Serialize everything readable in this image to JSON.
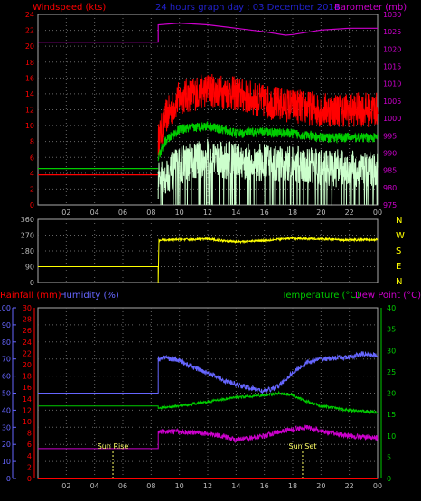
{
  "chart_data": [
    {
      "type": "line",
      "title": "24 hours graph day : 03 December 2014",
      "ylabel_left": "Windspeed (kts)",
      "ylabel_right": "Barometer (mb)",
      "ylim_left": [
        0,
        24
      ],
      "ylim_right": [
        975,
        1030
      ],
      "yticks_left": [
        "0",
        "2",
        "4",
        "6",
        "8",
        "10",
        "12",
        "14",
        "16",
        "18",
        "20",
        "22",
        "24"
      ],
      "yticks_right": [
        "975",
        "980",
        "985",
        "990",
        "995",
        "1000",
        "1005",
        "1010",
        "1015",
        "1020",
        "1025",
        "1030"
      ],
      "xticks": [
        "02",
        "04",
        "06",
        "08",
        "10",
        "12",
        "14",
        "16",
        "18",
        "20",
        "22",
        "00"
      ],
      "xlim_hours": [
        0,
        24
      ],
      "data_start_hour": 8.5,
      "colors": {
        "gust": "#ff0000",
        "wind": "#ccffcc",
        "avg": "#00cc00",
        "baro": "#cc00cc",
        "pre_wind": "#ff0000",
        "pre_avg": "#00cc00"
      },
      "series": [
        {
          "key": "baro",
          "points": [
            [
              0,
              1022
            ],
            [
              8.5,
              1022
            ],
            [
              8.5,
              1027
            ],
            [
              10,
              1027.5
            ],
            [
              12,
              1027
            ],
            [
              14,
              1026
            ],
            [
              16,
              1025
            ],
            [
              17.5,
              1024
            ],
            [
              18,
              1024.2
            ],
            [
              20,
              1025.5
            ],
            [
              22,
              1026
            ],
            [
              24,
              1026
            ]
          ]
        },
        {
          "key": "pre_wind",
          "points": [
            [
              0,
              3.8
            ],
            [
              8.5,
              3.8
            ]
          ]
        },
        {
          "key": "pre_avg",
          "points": [
            [
              0,
              4.6
            ],
            [
              8.5,
              4.6
            ]
          ]
        }
      ],
      "noise_series": [
        {
          "key": "gust",
          "base": [
            [
              8.5,
              8
            ],
            [
              9,
              11
            ],
            [
              10,
              13.5
            ],
            [
              12,
              14.5
            ],
            [
              14,
              14
            ],
            [
              16,
              13
            ],
            [
              18,
              12.5
            ],
            [
              20,
              12
            ],
            [
              22,
              12
            ],
            [
              24,
              12
            ]
          ],
          "amp": 2.2
        },
        {
          "key": "wind",
          "base": [
            [
              8.5,
              3
            ],
            [
              10,
              5
            ],
            [
              12,
              6
            ],
            [
              14,
              5.5
            ],
            [
              16,
              5.2
            ],
            [
              18,
              5
            ],
            [
              20,
              4.8
            ],
            [
              22,
              4.5
            ],
            [
              24,
              4.5
            ]
          ],
          "amp": 2.4
        },
        {
          "key": "avg",
          "base": [
            [
              8.5,
              6
            ],
            [
              9,
              8
            ],
            [
              10,
              9.5
            ],
            [
              12,
              10
            ],
            [
              14,
              9
            ],
            [
              16,
              9.2
            ],
            [
              18,
              9
            ],
            [
              20,
              8.5
            ],
            [
              22,
              8.5
            ],
            [
              24,
              8.5
            ]
          ],
          "amp": 0.6
        }
      ]
    },
    {
      "type": "line",
      "ylabel_right_letters": [
        "N",
        "W",
        "S",
        "E",
        "N"
      ],
      "ylim": [
        0,
        360
      ],
      "yticks": [
        "0",
        "90",
        "180",
        "270",
        "360"
      ],
      "xlim_hours": [
        0,
        24
      ],
      "colors": {
        "dir": "#ffff00"
      },
      "series": [
        {
          "key": "dir",
          "points": [
            [
              0,
              90
            ],
            [
              8.5,
              90
            ],
            [
              8.5,
              0
            ],
            [
              8.55,
              240
            ],
            [
              10,
              245
            ],
            [
              12,
              248
            ],
            [
              14,
              232
            ],
            [
              16,
              240
            ],
            [
              18,
              252
            ],
            [
              20,
              248
            ],
            [
              22,
              242
            ],
            [
              24,
              245
            ]
          ]
        }
      ],
      "noise_amp": 6
    },
    {
      "type": "line",
      "ylabel_left_rain": "Rainfall (mm)",
      "ylabel_left_hum": "Humidity (%)",
      "ylabel_right_temp": "Temperature (°C)",
      "ylabel_right_dew": "Dew Point (°C)",
      "ylim_rain": [
        0,
        30
      ],
      "ylim_hum": [
        0,
        100
      ],
      "ylim_temp": [
        0,
        40
      ],
      "yticks_rain": [
        "0",
        "2",
        "4",
        "6",
        "8",
        "10",
        "12",
        "14",
        "16",
        "18",
        "20",
        "22",
        "24",
        "26",
        "28",
        "30"
      ],
      "yticks_hum": [
        "0",
        "10",
        "20",
        "30",
        "40",
        "50",
        "60",
        "70",
        "80",
        "90",
        "100"
      ],
      "yticks_temp": [
        "0",
        "5",
        "10",
        "15",
        "20",
        "25",
        "30",
        "35",
        "40"
      ],
      "xticks": [
        "02",
        "04",
        "06",
        "08",
        "10",
        "12",
        "14",
        "16",
        "18",
        "20",
        "22",
        "00"
      ],
      "xlim_hours": [
        0,
        24
      ],
      "sunrise_label": "Sun Rise",
      "sunset_label": "Sun Set",
      "sunrise_hour": 5.3,
      "sunset_hour": 18.7,
      "colors": {
        "hum": "#6666ff",
        "temp": "#00cc00",
        "dew": "#cc00cc",
        "rain": "#ff0000"
      },
      "series": [
        {
          "key": "hum",
          "points": [
            [
              0,
              50
            ],
            [
              8.5,
              50
            ],
            [
              8.5,
              70
            ],
            [
              9,
              71
            ],
            [
              10,
              69
            ],
            [
              11,
              65
            ],
            [
              12,
              62
            ],
            [
              13,
              58
            ],
            [
              14,
              55
            ],
            [
              15,
              53
            ],
            [
              16,
              51
            ],
            [
              17,
              54
            ],
            [
              18,
              62
            ],
            [
              19,
              68
            ],
            [
              20,
              70
            ],
            [
              22,
              71
            ],
            [
              23,
              73
            ],
            [
              24,
              72
            ]
          ],
          "amp": 1.5
        },
        {
          "key": "temp",
          "points": [
            [
              0,
              17
            ],
            [
              8.5,
              17
            ],
            [
              8.5,
              16.5
            ],
            [
              10,
              17
            ],
            [
              12,
              18
            ],
            [
              14,
              19
            ],
            [
              16,
              19.5
            ],
            [
              17,
              20
            ],
            [
              18,
              19.5
            ],
            [
              19,
              18
            ],
            [
              20,
              17
            ],
            [
              22,
              16
            ],
            [
              24,
              15.5
            ]
          ],
          "amp": 0.3
        },
        {
          "key": "dew",
          "points": [
            [
              0,
              7
            ],
            [
              8.5,
              7
            ],
            [
              8.5,
              11
            ],
            [
              9,
              11
            ],
            [
              10,
              11
            ],
            [
              12,
              10.5
            ],
            [
              13,
              10
            ],
            [
              14,
              9
            ],
            [
              15,
              9.5
            ],
            [
              16,
              10
            ],
            [
              17,
              11
            ],
            [
              18,
              11.5
            ],
            [
              19,
              12
            ],
            [
              20,
              11
            ],
            [
              21,
              10.5
            ],
            [
              22,
              10
            ],
            [
              24,
              9.5
            ]
          ],
          "amp": 0.6
        },
        {
          "key": "rain",
          "points": [
            [
              0,
              0
            ],
            [
              24,
              0
            ]
          ],
          "amp": 0
        }
      ]
    }
  ]
}
